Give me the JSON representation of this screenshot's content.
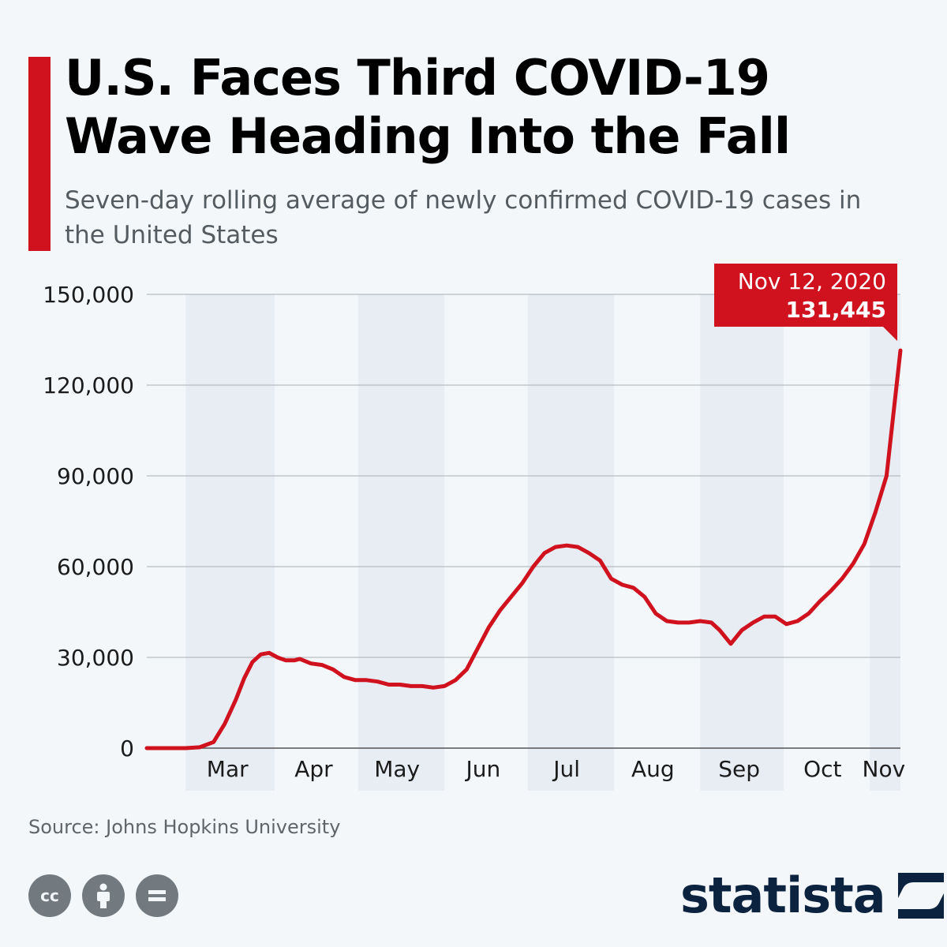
{
  "header": {
    "title": "U.S. Faces Third COVID-19 Wave Heading Into the Fall",
    "subtitle": "Seven-day rolling average of newly confirmed COVID-19 cases in the United States"
  },
  "callout": {
    "date": "Nov 12, 2020",
    "value": "131,445"
  },
  "footer": {
    "source": "Source: Johns Hopkins University",
    "cc_icons": [
      "cc-icon",
      "attribution-icon",
      "no-derivatives-icon"
    ],
    "brand": "statista",
    "cc_label": "cc"
  },
  "colors": {
    "accent": "#d0121e",
    "line": "#d0121e",
    "background": "#f3f7fa",
    "band": "#e8edf4",
    "brand": "#0c2340"
  },
  "chart_data": {
    "type": "line",
    "title": "U.S. Faces Third COVID-19 Wave Heading Into the Fall",
    "subtitle": "Seven-day rolling average of newly confirmed COVID-19 cases in the United States",
    "xlabel": "",
    "ylabel": "",
    "ylim": [
      0,
      150000
    ],
    "yticks": [
      "0",
      "30,000",
      "60,000",
      "90,000",
      "120,000",
      "150,000"
    ],
    "ytick_values": [
      0,
      30000,
      60000,
      90000,
      120000,
      150000
    ],
    "xticks": [
      "Mar",
      "Apr",
      "May",
      "Jun",
      "Jul",
      "Aug",
      "Sep",
      "Oct",
      "Nov"
    ],
    "x_start": "2020-02-15",
    "x_end": "2020-11-12",
    "grid": true,
    "alternating_month_bands": true,
    "series": [
      {
        "name": "",
        "x": [
          "2020-02-15",
          "2020-02-29",
          "2020-03-05",
          "2020-03-10",
          "2020-03-14",
          "2020-03-18",
          "2020-03-21",
          "2020-03-24",
          "2020-03-27",
          "2020-03-30",
          "2020-04-02",
          "2020-04-05",
          "2020-04-08",
          "2020-04-10",
          "2020-04-14",
          "2020-04-18",
          "2020-04-22",
          "2020-04-26",
          "2020-04-30",
          "2020-05-04",
          "2020-05-08",
          "2020-05-12",
          "2020-05-16",
          "2020-05-20",
          "2020-05-24",
          "2020-05-28",
          "2020-06-01",
          "2020-06-05",
          "2020-06-09",
          "2020-06-13",
          "2020-06-17",
          "2020-06-21",
          "2020-06-25",
          "2020-06-29",
          "2020-07-03",
          "2020-07-07",
          "2020-07-11",
          "2020-07-15",
          "2020-07-19",
          "2020-07-23",
          "2020-07-27",
          "2020-07-31",
          "2020-08-04",
          "2020-08-08",
          "2020-08-12",
          "2020-08-16",
          "2020-08-20",
          "2020-08-24",
          "2020-08-28",
          "2020-09-01",
          "2020-09-05",
          "2020-09-08",
          "2020-09-12",
          "2020-09-16",
          "2020-09-20",
          "2020-09-24",
          "2020-09-28",
          "2020-10-02",
          "2020-10-06",
          "2020-10-10",
          "2020-10-14",
          "2020-10-18",
          "2020-10-22",
          "2020-10-26",
          "2020-10-30",
          "2020-11-03",
          "2020-11-07",
          "2020-11-10",
          "2020-11-12"
        ],
        "values": [
          0,
          0,
          300,
          2000,
          8000,
          16000,
          23000,
          28500,
          31000,
          31500,
          30000,
          29000,
          29000,
          29500,
          28000,
          27500,
          26000,
          23500,
          22500,
          22500,
          22000,
          21000,
          21000,
          20500,
          20500,
          20000,
          20500,
          22500,
          26000,
          33000,
          40000,
          45500,
          50000,
          54500,
          60000,
          64500,
          66500,
          67000,
          66500,
          64500,
          62000,
          56000,
          54000,
          53000,
          50000,
          44500,
          42000,
          41500,
          41500,
          42000,
          41500,
          39000,
          34500,
          39000,
          41500,
          43500,
          43500,
          41000,
          42000,
          44500,
          48500,
          52000,
          56000,
          61000,
          67500,
          78000,
          90000,
          115000,
          131445
        ]
      }
    ]
  }
}
